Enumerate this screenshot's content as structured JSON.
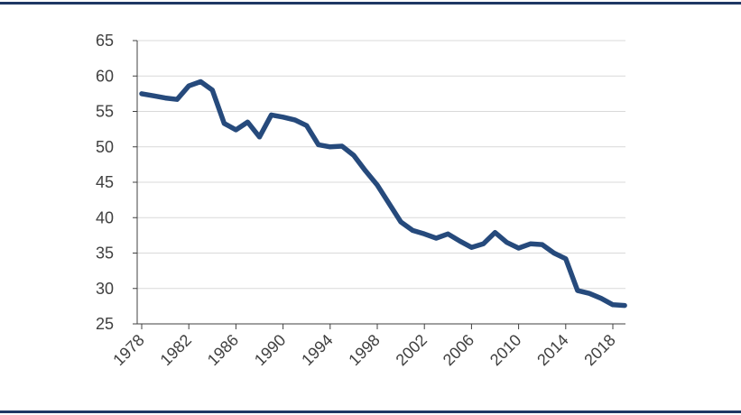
{
  "chart_data": {
    "type": "line",
    "title": "",
    "xlabel": "",
    "ylabel": "",
    "grid": true,
    "ylim": [
      25,
      65
    ],
    "xlim": [
      1978,
      2019
    ],
    "yticks": [
      25,
      30,
      35,
      40,
      45,
      50,
      55,
      60,
      65
    ],
    "xticks": [
      1978,
      1982,
      1986,
      1990,
      1994,
      1998,
      2002,
      2006,
      2010,
      2014,
      2018
    ],
    "line_color": "#264a7c",
    "x": [
      1978,
      1979,
      1980,
      1981,
      1982,
      1983,
      1984,
      1985,
      1986,
      1987,
      1988,
      1989,
      1990,
      1991,
      1992,
      1993,
      1994,
      1995,
      1996,
      1997,
      1998,
      1999,
      2000,
      2001,
      2002,
      2003,
      2004,
      2005,
      2006,
      2007,
      2008,
      2009,
      2010,
      2011,
      2012,
      2013,
      2014,
      2015,
      2016,
      2017,
      2018,
      2019
    ],
    "series": [
      {
        "values": [
          57.5,
          57.2,
          56.9,
          56.7,
          58.6,
          59.2,
          58.0,
          53.3,
          52.4,
          53.5,
          51.4,
          54.5,
          54.2,
          53.8,
          53.0,
          50.3,
          50.0,
          50.1,
          48.8,
          46.6,
          44.6,
          42.0,
          39.4,
          38.2,
          37.7,
          37.1,
          37.7,
          36.7,
          35.8,
          36.3,
          37.9,
          36.5,
          35.7,
          36.3,
          36.2,
          35.0,
          34.2,
          29.7,
          29.3,
          28.6,
          27.7,
          27.6
        ]
      }
    ]
  }
}
